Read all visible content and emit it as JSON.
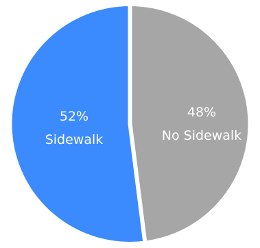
{
  "chart_data": {
    "type": "pie",
    "slices": [
      {
        "label": "No Sidewalk",
        "value": 48,
        "value_text": "48%",
        "color": "#A6A6A6"
      },
      {
        "label": "Sidewalk",
        "value": 52,
        "value_text": "52%",
        "color": "#3B8BFF"
      }
    ],
    "start": "top, clockwise",
    "slice_separator_color": "#FFFFFF"
  }
}
